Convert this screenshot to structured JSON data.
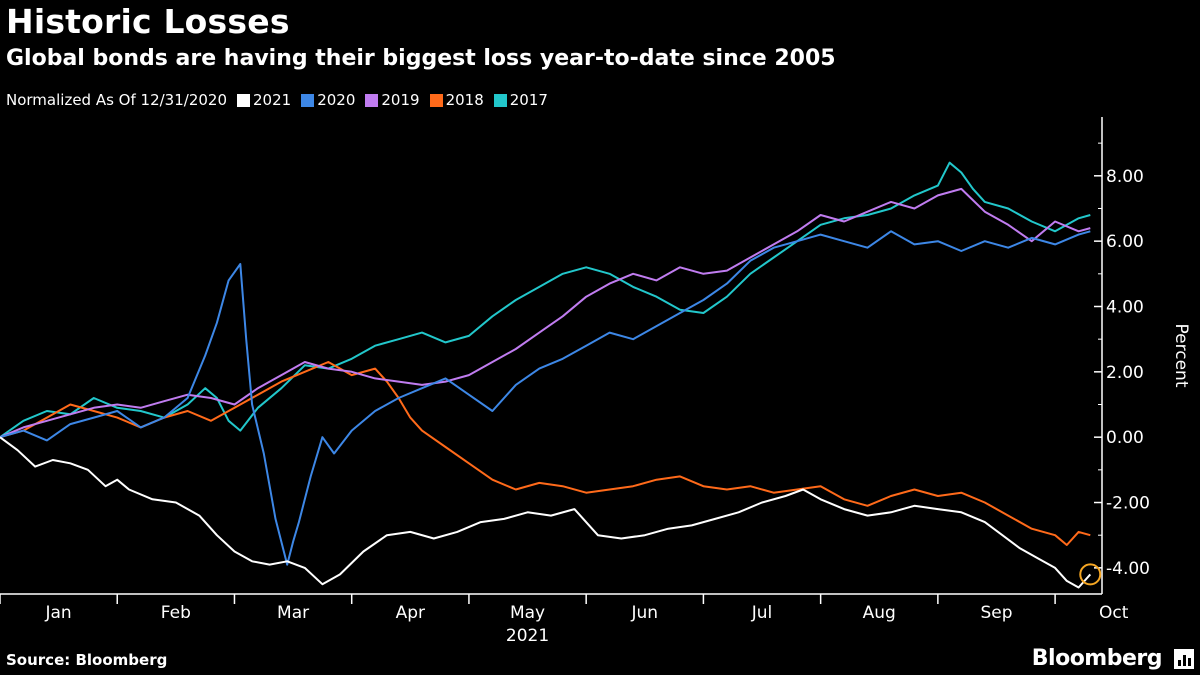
{
  "title": "Historic Losses",
  "subtitle": "Global bonds are having their biggest loss year-to-date since 2005",
  "legend_note": "Normalized As Of 12/31/2020",
  "source": "Source: Bloomberg",
  "brand": "Bloomberg",
  "chart_data": {
    "type": "line",
    "title": "Historic Losses",
    "subtitle": "Global bonds are having their biggest loss year-to-date since 2005",
    "ylabel": "Percent",
    "xlabel": "2021",
    "x_tick_labels": [
      "Jan",
      "Feb",
      "Mar",
      "Apr",
      "May",
      "Jun",
      "Jul",
      "Aug",
      "Sep",
      "Oct"
    ],
    "y_tick_labels": [
      "8.00",
      "6.00",
      "4.00",
      "2.00",
      "0.00",
      "-2.00",
      "-4.00"
    ],
    "x_range": [
      0,
      9.4
    ],
    "ylim": [
      -4.8,
      9.8
    ],
    "legend_position": "top-left",
    "grid": false,
    "x_units": "months since Jan 1 (0 = Jan 1)",
    "series": [
      {
        "name": "2021",
        "color": "#ffffff",
        "x": [
          0,
          0.15,
          0.3,
          0.45,
          0.6,
          0.75,
          0.9,
          1.0,
          1.1,
          1.3,
          1.5,
          1.7,
          1.85,
          2.0,
          2.15,
          2.3,
          2.45,
          2.6,
          2.75,
          2.9,
          3.1,
          3.3,
          3.5,
          3.7,
          3.9,
          4.1,
          4.3,
          4.5,
          4.7,
          4.9,
          5.1,
          5.3,
          5.5,
          5.7,
          5.9,
          6.1,
          6.3,
          6.5,
          6.7,
          6.85,
          7.0,
          7.2,
          7.4,
          7.6,
          7.8,
          8.0,
          8.2,
          8.4,
          8.55,
          8.7,
          8.85,
          9.0,
          9.1,
          9.2,
          9.3
        ],
        "y": [
          0,
          -0.4,
          -0.9,
          -0.7,
          -0.8,
          -1.0,
          -1.5,
          -1.3,
          -1.6,
          -1.9,
          -2.0,
          -2.4,
          -3.0,
          -3.5,
          -3.8,
          -3.9,
          -3.8,
          -4.0,
          -4.5,
          -4.2,
          -3.5,
          -3.0,
          -2.9,
          -3.1,
          -2.9,
          -2.6,
          -2.5,
          -2.3,
          -2.4,
          -2.2,
          -3.0,
          -3.1,
          -3.0,
          -2.8,
          -2.7,
          -2.5,
          -2.3,
          -2.0,
          -1.8,
          -1.6,
          -1.9,
          -2.2,
          -2.4,
          -2.3,
          -2.1,
          -2.2,
          -2.3,
          -2.6,
          -3.0,
          -3.4,
          -3.7,
          -4.0,
          -4.4,
          -4.6,
          -4.2
        ]
      },
      {
        "name": "2020",
        "color": "#3d87e6",
        "x": [
          0,
          0.2,
          0.4,
          0.6,
          0.8,
          1.0,
          1.2,
          1.4,
          1.6,
          1.75,
          1.85,
          1.95,
          2.05,
          2.1,
          2.15,
          2.25,
          2.35,
          2.45,
          2.5,
          2.55,
          2.65,
          2.75,
          2.85,
          3.0,
          3.2,
          3.4,
          3.6,
          3.8,
          4.0,
          4.2,
          4.4,
          4.6,
          4.8,
          5.0,
          5.2,
          5.4,
          5.6,
          5.8,
          6.0,
          6.2,
          6.4,
          6.6,
          6.8,
          7.0,
          7.2,
          7.4,
          7.6,
          7.8,
          8.0,
          8.2,
          8.4,
          8.6,
          8.8,
          9.0,
          9.2,
          9.3
        ],
        "y": [
          0,
          0.2,
          -0.1,
          0.4,
          0.6,
          0.8,
          0.3,
          0.6,
          1.2,
          2.5,
          3.5,
          4.8,
          5.3,
          3.0,
          1.0,
          -0.5,
          -2.5,
          -3.9,
          -3.2,
          -2.6,
          -1.2,
          0.0,
          -0.5,
          0.2,
          0.8,
          1.2,
          1.5,
          1.8,
          1.3,
          0.8,
          1.6,
          2.1,
          2.4,
          2.8,
          3.2,
          3.0,
          3.4,
          3.8,
          4.2,
          4.7,
          5.4,
          5.8,
          6.0,
          6.2,
          6.0,
          5.8,
          6.3,
          5.9,
          6.0,
          5.7,
          6.0,
          5.8,
          6.1,
          5.9,
          6.2,
          6.3
        ]
      },
      {
        "name": "2019",
        "color": "#c07cf0",
        "x": [
          0,
          0.2,
          0.4,
          0.6,
          0.8,
          1.0,
          1.2,
          1.4,
          1.6,
          1.8,
          2.0,
          2.2,
          2.4,
          2.6,
          2.8,
          3.0,
          3.2,
          3.4,
          3.6,
          3.8,
          4.0,
          4.2,
          4.4,
          4.6,
          4.8,
          5.0,
          5.2,
          5.4,
          5.6,
          5.8,
          6.0,
          6.2,
          6.4,
          6.6,
          6.8,
          7.0,
          7.2,
          7.4,
          7.6,
          7.8,
          8.0,
          8.2,
          8.4,
          8.6,
          8.8,
          9.0,
          9.2,
          9.3
        ],
        "y": [
          0,
          0.3,
          0.5,
          0.7,
          0.9,
          1.0,
          0.9,
          1.1,
          1.3,
          1.2,
          1.0,
          1.5,
          1.9,
          2.3,
          2.1,
          2.0,
          1.8,
          1.7,
          1.6,
          1.7,
          1.9,
          2.3,
          2.7,
          3.2,
          3.7,
          4.3,
          4.7,
          5.0,
          4.8,
          5.2,
          5.0,
          5.1,
          5.5,
          5.9,
          6.3,
          6.8,
          6.6,
          6.9,
          7.2,
          7.0,
          7.4,
          7.6,
          6.9,
          6.5,
          6.0,
          6.6,
          6.3,
          6.4
        ]
      },
      {
        "name": "2018",
        "color": "#ff6a1a",
        "x": [
          0,
          0.2,
          0.4,
          0.6,
          0.8,
          1.0,
          1.2,
          1.4,
          1.6,
          1.8,
          2.0,
          2.2,
          2.4,
          2.6,
          2.8,
          3.0,
          3.2,
          3.3,
          3.4,
          3.5,
          3.6,
          3.8,
          4.0,
          4.2,
          4.4,
          4.6,
          4.8,
          5.0,
          5.2,
          5.4,
          5.6,
          5.8,
          6.0,
          6.2,
          6.4,
          6.6,
          6.8,
          7.0,
          7.2,
          7.4,
          7.6,
          7.8,
          8.0,
          8.2,
          8.4,
          8.6,
          8.8,
          9.0,
          9.1,
          9.2,
          9.3
        ],
        "y": [
          0,
          0.2,
          0.6,
          1.0,
          0.8,
          0.6,
          0.3,
          0.6,
          0.8,
          0.5,
          0.9,
          1.3,
          1.7,
          2.0,
          2.3,
          1.9,
          2.1,
          1.7,
          1.2,
          0.6,
          0.2,
          -0.3,
          -0.8,
          -1.3,
          -1.6,
          -1.4,
          -1.5,
          -1.7,
          -1.6,
          -1.5,
          -1.3,
          -1.2,
          -1.5,
          -1.6,
          -1.5,
          -1.7,
          -1.6,
          -1.5,
          -1.9,
          -2.1,
          -1.8,
          -1.6,
          -1.8,
          -1.7,
          -2.0,
          -2.4,
          -2.8,
          -3.0,
          -3.3,
          -2.9,
          -3.0
        ]
      },
      {
        "name": "2017",
        "color": "#22c7cb",
        "x": [
          0,
          0.2,
          0.4,
          0.6,
          0.8,
          1.0,
          1.2,
          1.4,
          1.6,
          1.75,
          1.85,
          1.95,
          2.05,
          2.2,
          2.4,
          2.6,
          2.8,
          3.0,
          3.2,
          3.4,
          3.6,
          3.8,
          4.0,
          4.2,
          4.4,
          4.6,
          4.8,
          5.0,
          5.2,
          5.4,
          5.6,
          5.8,
          6.0,
          6.2,
          6.4,
          6.6,
          6.8,
          7.0,
          7.2,
          7.4,
          7.6,
          7.8,
          8.0,
          8.1,
          8.2,
          8.3,
          8.4,
          8.6,
          8.8,
          9.0,
          9.2,
          9.3
        ],
        "y": [
          0,
          0.5,
          0.8,
          0.7,
          1.2,
          0.9,
          0.8,
          0.6,
          1.0,
          1.5,
          1.2,
          0.5,
          0.2,
          0.9,
          1.5,
          2.2,
          2.1,
          2.4,
          2.8,
          3.0,
          3.2,
          2.9,
          3.1,
          3.7,
          4.2,
          4.6,
          5.0,
          5.2,
          5.0,
          4.6,
          4.3,
          3.9,
          3.8,
          4.3,
          5.0,
          5.5,
          6.0,
          6.5,
          6.7,
          6.8,
          7.0,
          7.4,
          7.7,
          8.4,
          8.1,
          7.6,
          7.2,
          7.0,
          6.6,
          6.3,
          6.7,
          6.8
        ]
      }
    ],
    "annotations": [
      {
        "type": "circle-marker",
        "series": "2021",
        "x": 9.3,
        "y": -4.2,
        "color": "#f5a623"
      }
    ]
  }
}
